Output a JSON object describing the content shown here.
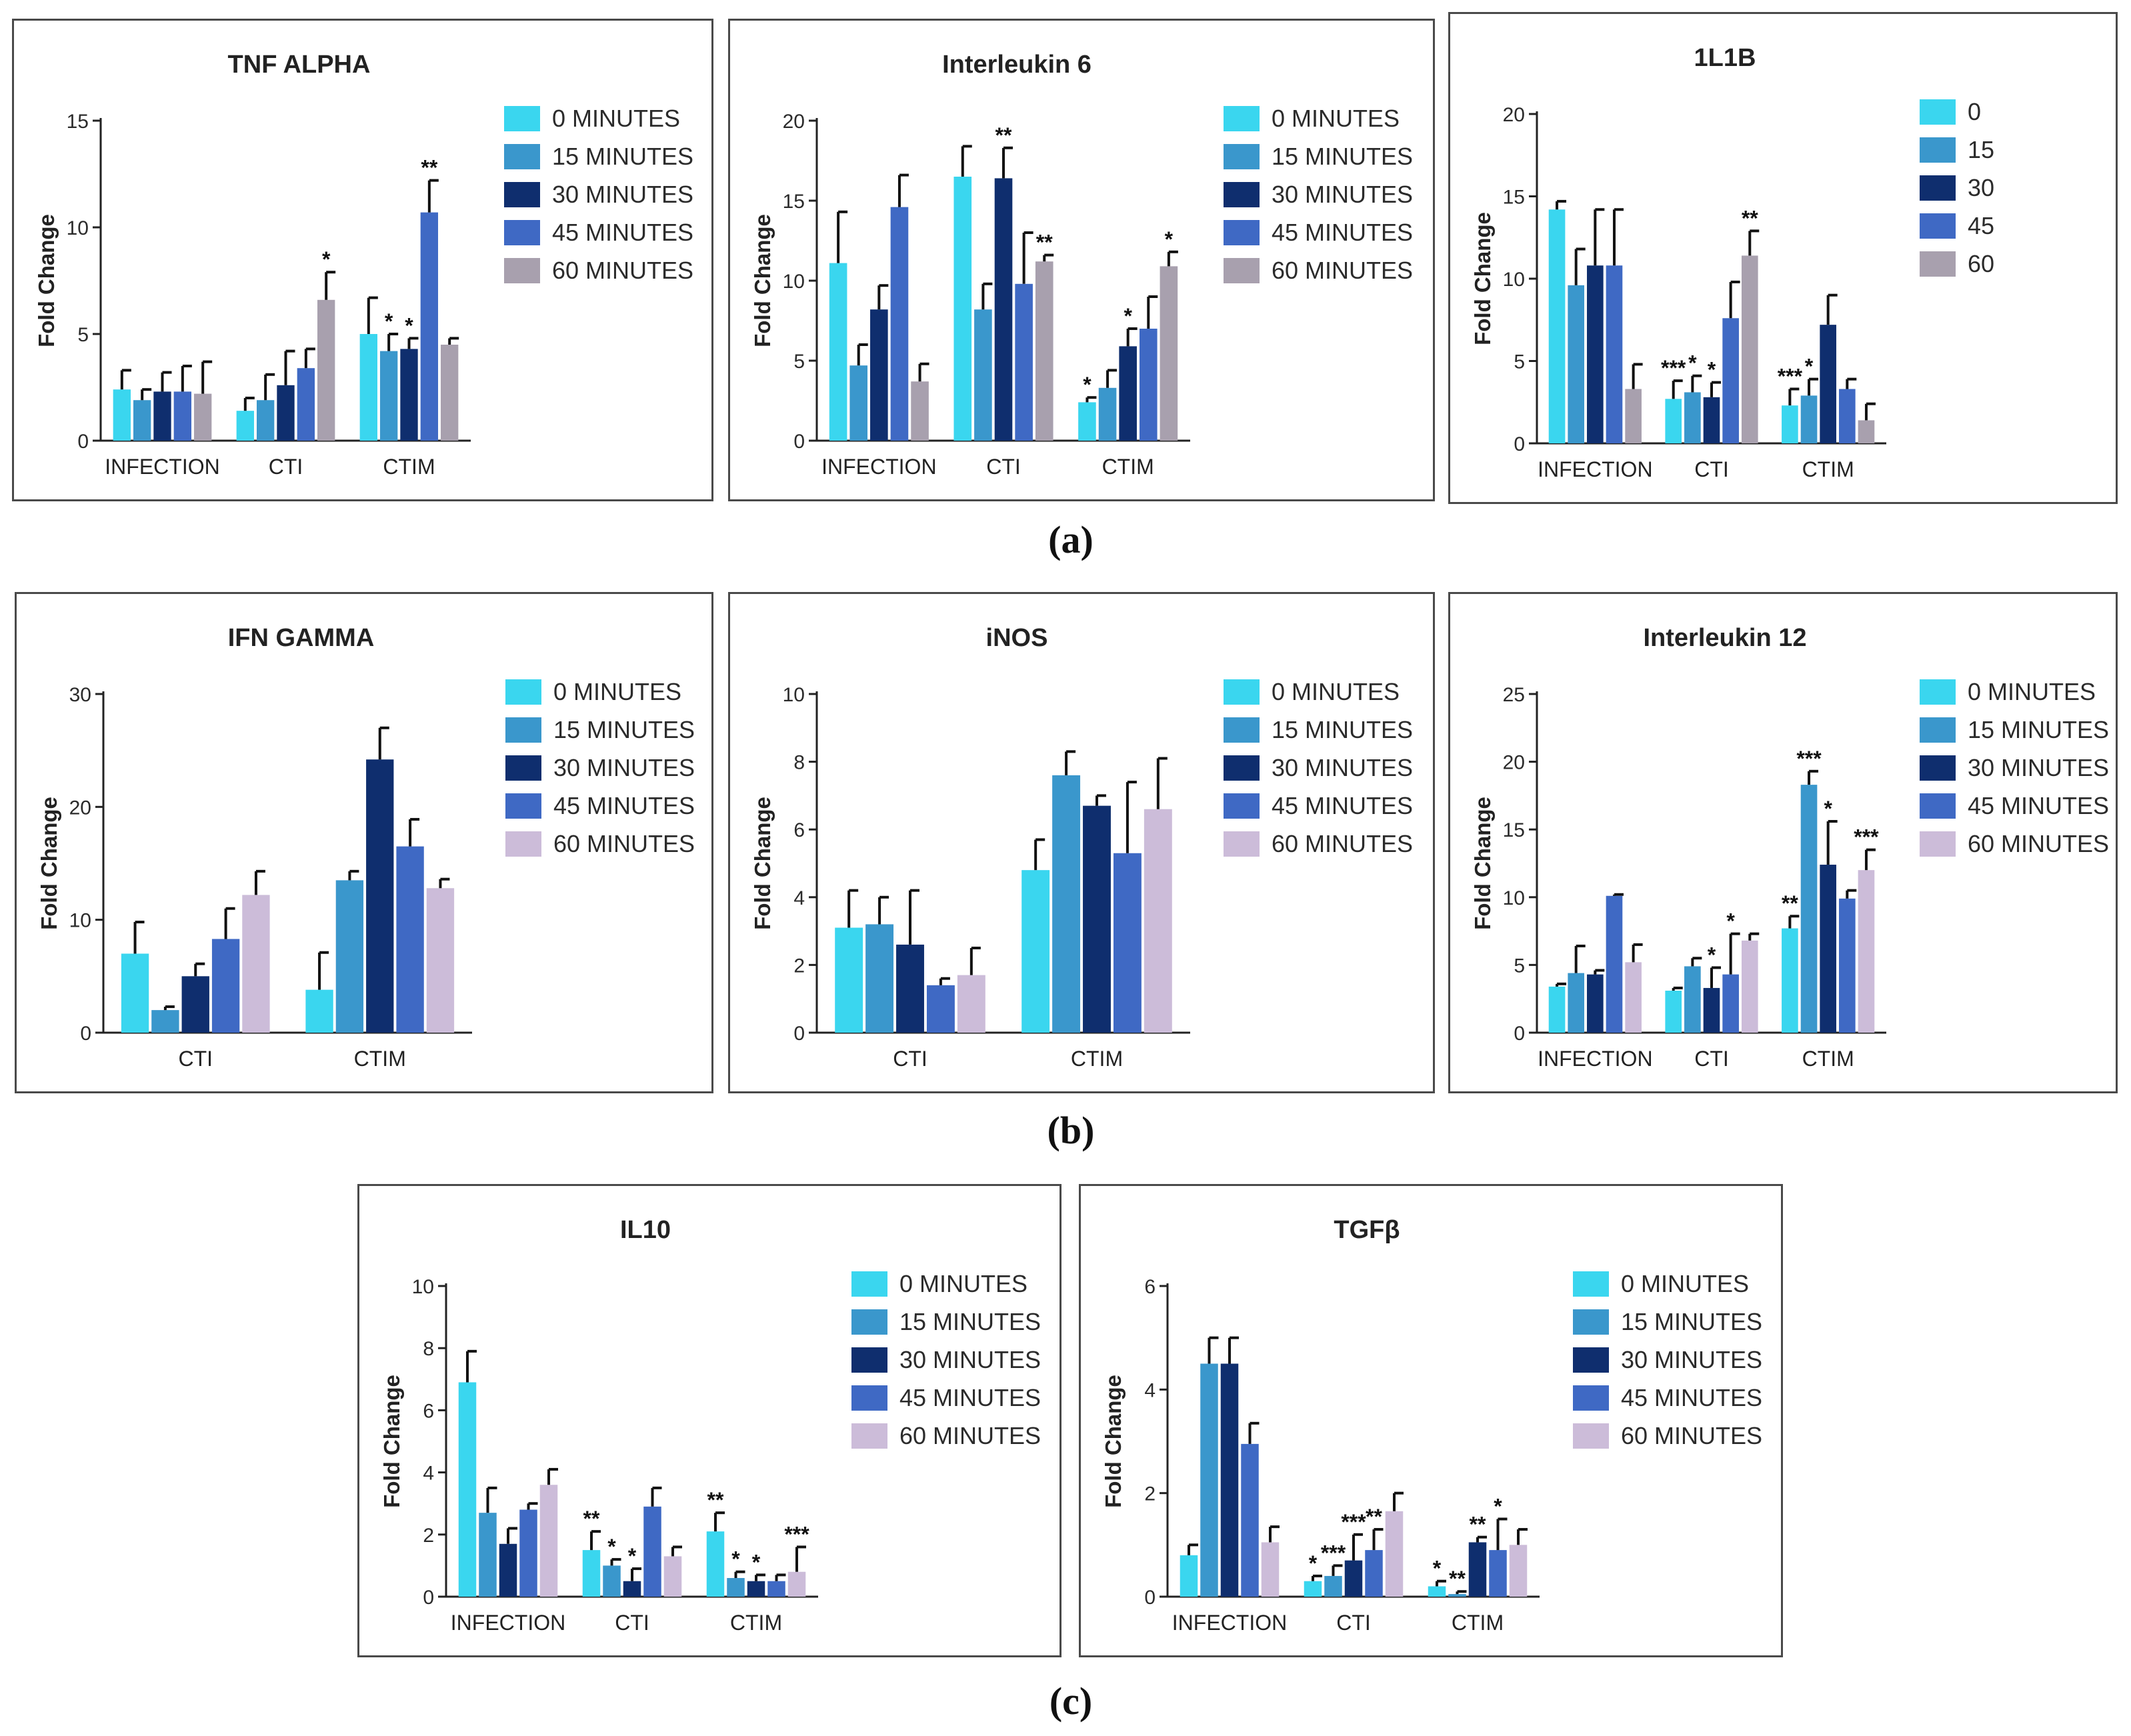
{
  "palette": {
    "minutes": [
      "#3ad6ef",
      "#3a97cc",
      "#0f2e6e",
      "#3f69c4",
      "#a8a0ae"
    ],
    "minutes_light": [
      "#3ad6ef",
      "#3a97cc",
      "#0f2e6e",
      "#3f69c4",
      "#ccbcd9"
    ]
  },
  "row_labels": [
    "(a)",
    "(b)",
    "(c)"
  ],
  "chart_data": [
    {
      "id": "tnf",
      "type": "bar",
      "title": "TNF ALPHA",
      "ylabel": "Fold Change",
      "ylim": [
        0,
        15
      ],
      "yticks": [
        "0",
        "5",
        "10",
        "15"
      ],
      "categories": [
        "INFECTION",
        "CTI",
        "CTIM"
      ],
      "legend": [
        "0 MINUTES",
        "15 MINUTES",
        "30 MINUTES",
        "45 MINUTES",
        "60 MINUTES"
      ],
      "palette": "minutes",
      "series": [
        {
          "name": "0 MINUTES",
          "values": [
            2.4,
            1.4,
            5.0
          ],
          "errors": [
            0.9,
            0.6,
            1.7
          ],
          "sig": [
            "",
            "",
            ""
          ]
        },
        {
          "name": "15 MINUTES",
          "values": [
            1.9,
            1.9,
            4.2
          ],
          "errors": [
            0.5,
            1.2,
            0.8
          ],
          "sig": [
            "",
            "",
            "*"
          ]
        },
        {
          "name": "30 MINUTES",
          "values": [
            2.3,
            2.6,
            4.3
          ],
          "errors": [
            0.9,
            1.6,
            0.5
          ],
          "sig": [
            "",
            "",
            "*"
          ]
        },
        {
          "name": "45 MINUTES",
          "values": [
            2.3,
            3.4,
            10.7
          ],
          "errors": [
            1.2,
            0.9,
            1.5
          ],
          "sig": [
            "",
            "",
            "**"
          ]
        },
        {
          "name": "60 MINUTES",
          "values": [
            2.2,
            6.6,
            4.5
          ],
          "errors": [
            1.5,
            1.3,
            0.3
          ],
          "sig": [
            "",
            "*",
            ""
          ]
        }
      ]
    },
    {
      "id": "il6",
      "type": "bar",
      "title": "Interleukin 6",
      "ylabel": "Fold Change",
      "ylim": [
        0,
        20
      ],
      "yticks": [
        "0",
        "5",
        "10",
        "15",
        "20"
      ],
      "categories": [
        "INFECTION",
        "CTI",
        "CTIM"
      ],
      "legend": [
        "0 MINUTES",
        "15 MINUTES",
        "30 MINUTES",
        "45 MINUTES",
        "60 MINUTES"
      ],
      "palette": "minutes",
      "series": [
        {
          "name": "0 MINUTES",
          "values": [
            11.1,
            16.5,
            2.4
          ],
          "errors": [
            3.2,
            1.9,
            0.3
          ],
          "sig": [
            "",
            "",
            "*"
          ]
        },
        {
          "name": "15 MINUTES",
          "values": [
            4.7,
            8.2,
            3.3
          ],
          "errors": [
            1.3,
            1.6,
            1.1
          ],
          "sig": [
            "",
            "",
            ""
          ]
        },
        {
          "name": "30 MINUTES",
          "values": [
            8.2,
            16.4,
            5.9
          ],
          "errors": [
            1.5,
            1.9,
            1.1
          ],
          "sig": [
            "",
            "**",
            "*"
          ]
        },
        {
          "name": "45 MINUTES",
          "values": [
            14.6,
            9.8,
            7.0
          ],
          "errors": [
            2.0,
            3.2,
            2.0
          ],
          "sig": [
            "",
            "",
            ""
          ]
        },
        {
          "name": "60 MINUTES",
          "values": [
            3.7,
            11.2,
            10.9
          ],
          "errors": [
            1.1,
            0.4,
            0.9
          ],
          "sig": [
            "",
            "**",
            "*"
          ]
        }
      ]
    },
    {
      "id": "il1b",
      "type": "bar",
      "title": "1L1B",
      "ylabel": "Fold Change",
      "ylim": [
        0,
        20
      ],
      "yticks": [
        "0",
        "5",
        "10",
        "15",
        "20"
      ],
      "categories": [
        "INFECTION",
        "CTI",
        "CTIM"
      ],
      "legend": [
        "0",
        "15",
        "30",
        "45",
        "60"
      ],
      "palette": "minutes",
      "series": [
        {
          "name": "0",
          "values": [
            14.2,
            2.7,
            2.3
          ],
          "errors": [
            0.5,
            1.1,
            1.0
          ],
          "sig": [
            "",
            "***",
            "***"
          ]
        },
        {
          "name": "15",
          "values": [
            9.6,
            3.1,
            2.9
          ],
          "errors": [
            2.2,
            1.0,
            1.0
          ],
          "sig": [
            "",
            "*",
            "*"
          ]
        },
        {
          "name": "30",
          "values": [
            10.8,
            2.8,
            7.2
          ],
          "errors": [
            3.4,
            0.9,
            1.8
          ],
          "sig": [
            "",
            "*",
            ""
          ]
        },
        {
          "name": "45",
          "values": [
            10.8,
            7.6,
            3.3
          ],
          "errors": [
            3.4,
            2.2,
            0.6
          ],
          "sig": [
            "",
            "",
            ""
          ]
        },
        {
          "name": "60",
          "values": [
            3.3,
            11.4,
            1.4
          ],
          "errors": [
            1.5,
            1.5,
            1.0
          ],
          "sig": [
            "",
            "**",
            ""
          ]
        }
      ]
    },
    {
      "id": "ifn",
      "type": "bar",
      "title": "IFN GAMMA",
      "ylabel": "Fold Change",
      "ylim": [
        0,
        30
      ],
      "yticks": [
        "0",
        "10",
        "20",
        "30"
      ],
      "categories": [
        "CTI",
        "CTIM"
      ],
      "legend": [
        "0 MINUTES",
        "15 MINUTES",
        "30 MINUTES",
        "45 MINUTES",
        "60 MINUTES"
      ],
      "palette": "minutes_light",
      "series": [
        {
          "name": "0 MINUTES",
          "values": [
            7.0,
            3.8
          ],
          "errors": [
            2.8,
            3.3
          ],
          "sig": [
            "",
            ""
          ]
        },
        {
          "name": "15 MINUTES",
          "values": [
            2.0,
            13.5
          ],
          "errors": [
            0.3,
            0.8
          ],
          "sig": [
            "",
            ""
          ]
        },
        {
          "name": "30 MINUTES",
          "values": [
            5.0,
            24.2
          ],
          "errors": [
            1.1,
            2.8
          ],
          "sig": [
            "",
            ""
          ]
        },
        {
          "name": "45 MINUTES",
          "values": [
            8.3,
            16.5
          ],
          "errors": [
            2.7,
            2.4
          ],
          "sig": [
            "",
            ""
          ]
        },
        {
          "name": "60 MINUTES",
          "values": [
            12.2,
            12.8
          ],
          "errors": [
            2.1,
            0.8
          ],
          "sig": [
            "",
            ""
          ]
        }
      ]
    },
    {
      "id": "inos",
      "type": "bar",
      "title": "iNOS",
      "ylabel": "Fold Change",
      "ylim": [
        0,
        10
      ],
      "yticks": [
        "0",
        "2",
        "4",
        "6",
        "8",
        "10"
      ],
      "categories": [
        "CTI",
        "CTIM"
      ],
      "legend": [
        "0 MINUTES",
        "15 MINUTES",
        "30 MINUTES",
        "45 MINUTES",
        "60 MINUTES"
      ],
      "palette": "minutes_light",
      "series": [
        {
          "name": "0 MINUTES",
          "values": [
            3.1,
            4.8
          ],
          "errors": [
            1.1,
            0.9
          ],
          "sig": [
            "",
            ""
          ]
        },
        {
          "name": "15 MINUTES",
          "values": [
            3.2,
            7.6
          ],
          "errors": [
            0.8,
            0.7
          ],
          "sig": [
            "",
            ""
          ]
        },
        {
          "name": "30 MINUTES",
          "values": [
            2.6,
            6.7
          ],
          "errors": [
            1.6,
            0.3
          ],
          "sig": [
            "",
            ""
          ]
        },
        {
          "name": "45 MINUTES",
          "values": [
            1.4,
            5.3
          ],
          "errors": [
            0.2,
            2.1
          ],
          "sig": [
            "",
            ""
          ]
        },
        {
          "name": "60 MINUTES",
          "values": [
            1.7,
            6.6
          ],
          "errors": [
            0.8,
            1.5
          ],
          "sig": [
            "",
            ""
          ]
        }
      ]
    },
    {
      "id": "il12",
      "type": "bar",
      "title": "Interleukin 12",
      "ylabel": "Fold Change",
      "ylim": [
        0,
        25
      ],
      "yticks": [
        "0",
        "5",
        "10",
        "15",
        "20",
        "25"
      ],
      "categories": [
        "INFECTION",
        "CTI",
        "CTIM"
      ],
      "legend": [
        "0 MINUTES",
        "15 MINUTES",
        "30 MINUTES",
        "45 MINUTES",
        "60 MINUTES"
      ],
      "palette": "minutes_light",
      "series": [
        {
          "name": "0 MINUTES",
          "values": [
            3.4,
            3.1,
            7.7
          ],
          "errors": [
            0.2,
            0.2,
            0.9
          ],
          "sig": [
            "",
            "",
            "**"
          ]
        },
        {
          "name": "15 MINUTES",
          "values": [
            4.4,
            4.9,
            18.3
          ],
          "errors": [
            2.0,
            0.6,
            1.0
          ],
          "sig": [
            "",
            "",
            "***"
          ]
        },
        {
          "name": "30 MINUTES",
          "values": [
            4.3,
            3.3,
            12.4
          ],
          "errors": [
            0.3,
            1.5,
            3.2
          ],
          "sig": [
            "",
            "*",
            "*"
          ]
        },
        {
          "name": "45 MINUTES",
          "values": [
            10.1,
            4.3,
            9.9
          ],
          "errors": [
            0.1,
            3.0,
            0.6
          ],
          "sig": [
            "",
            "*",
            ""
          ]
        },
        {
          "name": "60 MINUTES",
          "values": [
            5.2,
            6.8,
            12.0
          ],
          "errors": [
            1.3,
            0.5,
            1.5
          ],
          "sig": [
            "",
            "",
            "***"
          ]
        }
      ]
    },
    {
      "id": "il10",
      "type": "bar",
      "title": "IL10",
      "ylabel": "Fold Change",
      "ylim": [
        0,
        10
      ],
      "yticks": [
        "0",
        "2",
        "4",
        "6",
        "8",
        "10"
      ],
      "categories": [
        "INFECTION",
        "CTI",
        "CTIM"
      ],
      "legend": [
        "0 MINUTES",
        "15  MINUTES",
        "30  MINUTES",
        " 45  MINUTES",
        "60  MINUTES"
      ],
      "palette": "minutes_light",
      "series": [
        {
          "name": "0 MINUTES",
          "values": [
            6.9,
            1.5,
            2.1
          ],
          "errors": [
            1.0,
            0.6,
            0.6
          ],
          "sig": [
            "",
            "**",
            "**"
          ]
        },
        {
          "name": "15 MINUTES",
          "values": [
            2.7,
            1.0,
            0.6
          ],
          "errors": [
            0.8,
            0.2,
            0.2
          ],
          "sig": [
            "",
            "*",
            "*"
          ]
        },
        {
          "name": "30 MINUTES",
          "values": [
            1.7,
            0.5,
            0.5
          ],
          "errors": [
            0.5,
            0.4,
            0.2
          ],
          "sig": [
            "",
            "*",
            "*"
          ]
        },
        {
          "name": "45 MINUTES",
          "values": [
            2.8,
            2.9,
            0.5
          ],
          "errors": [
            0.2,
            0.6,
            0.2
          ],
          "sig": [
            "",
            "",
            ""
          ]
        },
        {
          "name": "60 MINUTES",
          "values": [
            3.6,
            1.3,
            0.8
          ],
          "errors": [
            0.5,
            0.3,
            0.8
          ],
          "sig": [
            "",
            "",
            "***"
          ]
        }
      ]
    },
    {
      "id": "tgf",
      "type": "bar",
      "title": "TGFβ",
      "ylabel": "Fold Change",
      "ylim": [
        0,
        6
      ],
      "yticks": [
        "0",
        "2",
        "4",
        "6"
      ],
      "categories": [
        "INFECTION",
        "CTI",
        "CTIM"
      ],
      "legend": [
        "0 MINUTES",
        "15  MINUTES",
        "30  MINUTES",
        "45  MINUTES",
        "60  MINUTES"
      ],
      "palette": "minutes_light",
      "series": [
        {
          "name": "0 MINUTES",
          "values": [
            0.8,
            0.3,
            0.2
          ],
          "errors": [
            0.2,
            0.1,
            0.1
          ],
          "sig": [
            "",
            "*",
            "*"
          ]
        },
        {
          "name": "15 MINUTES",
          "values": [
            4.5,
            0.4,
            0.05
          ],
          "errors": [
            0.5,
            0.2,
            0.05
          ],
          "sig": [
            "",
            "***",
            "**"
          ]
        },
        {
          "name": "30 MINUTES",
          "values": [
            4.5,
            0.7,
            1.05
          ],
          "errors": [
            0.5,
            0.5,
            0.1
          ],
          "sig": [
            "",
            "***",
            "**"
          ]
        },
        {
          "name": "45 MINUTES",
          "values": [
            2.95,
            0.9,
            0.9
          ],
          "errors": [
            0.4,
            0.4,
            0.6
          ],
          "sig": [
            "",
            "**",
            "*"
          ]
        },
        {
          "name": "60 MINUTES",
          "values": [
            1.05,
            1.65,
            1.0
          ],
          "errors": [
            0.3,
            0.35,
            0.3
          ],
          "sig": [
            "",
            "",
            ""
          ]
        }
      ]
    }
  ]
}
